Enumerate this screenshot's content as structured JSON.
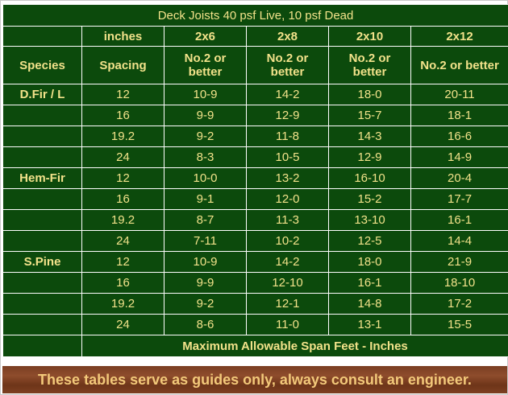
{
  "title": "Deck Joists 40 psf Live, 10 psf Dead",
  "header": {
    "inches_label": "inches",
    "species_label": "Species",
    "spacing_label": "Spacing",
    "sizes": [
      "2x6",
      "2x8",
      "2x10",
      "2x12"
    ],
    "grades": [
      "No.2 or better",
      "No.2 or better",
      "No.2 or better",
      "No.2 or better"
    ]
  },
  "rows": [
    {
      "species": "D.Fir / L",
      "spacing": "12",
      "values": [
        "10-9",
        "14-2",
        "18-0",
        "20-11"
      ]
    },
    {
      "species": "",
      "spacing": "16",
      "values": [
        "9-9",
        "12-9",
        "15-7",
        "18-1"
      ]
    },
    {
      "species": "",
      "spacing": "19.2",
      "values": [
        "9-2",
        "11-8",
        "14-3",
        "16-6"
      ]
    },
    {
      "species": "",
      "spacing": "24",
      "values": [
        "8-3",
        "10-5",
        "12-9",
        "14-9"
      ]
    },
    {
      "species": "Hem-Fir",
      "spacing": "12",
      "values": [
        "10-0",
        "13-2",
        "16-10",
        "20-4"
      ]
    },
    {
      "species": "",
      "spacing": "16",
      "values": [
        "9-1",
        "12-0",
        "15-2",
        "17-7"
      ]
    },
    {
      "species": "",
      "spacing": "19.2",
      "values": [
        "8-7",
        "11-3",
        "13-10",
        "16-1"
      ]
    },
    {
      "species": "",
      "spacing": "24",
      "values": [
        "7-11",
        "10-2",
        "12-5",
        "14-4"
      ]
    },
    {
      "species": "S.Pine",
      "spacing": "12",
      "values": [
        "10-9",
        "14-2",
        "18-0",
        "21-9"
      ]
    },
    {
      "species": "",
      "spacing": "16",
      "values": [
        "9-9",
        "12-10",
        "16-1",
        "18-10"
      ]
    },
    {
      "species": "",
      "spacing": "19.2",
      "values": [
        "9-2",
        "12-1",
        "14-8",
        "17-2"
      ]
    },
    {
      "species": "",
      "spacing": "24",
      "values": [
        "8-6",
        "11-0",
        "13-1",
        "15-5"
      ]
    }
  ],
  "footer": "Maximum Allowable Span Feet - Inches",
  "banner": "These tables serve as guides only, always consult an engineer.",
  "colors": {
    "cell_bg": "#0c4a0c",
    "text": "#f2e28a",
    "highlight_text": "#ffffff",
    "banner_bg": "#7a3e22",
    "banner_text": "#f3c97a"
  }
}
